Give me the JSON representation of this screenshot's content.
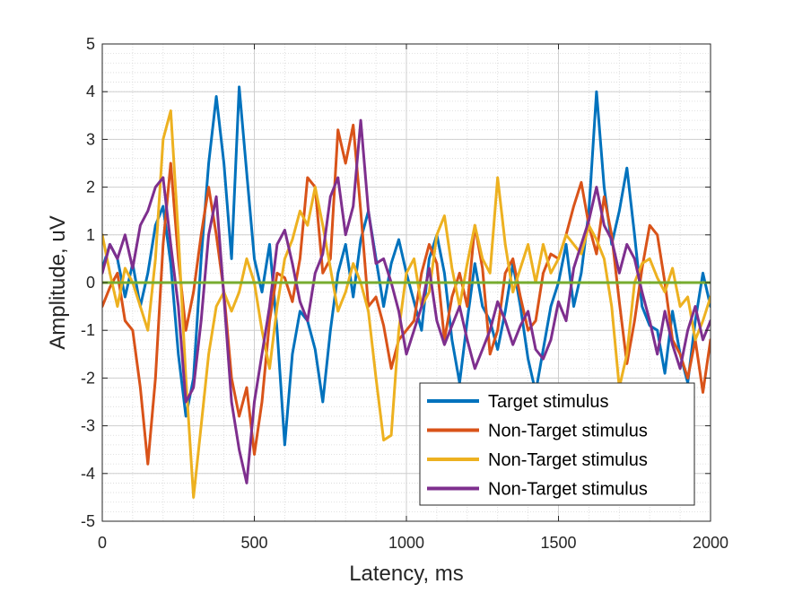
{
  "chart_data": {
    "type": "line",
    "xlabel": "Latency, ms",
    "ylabel": "Amplitude, uV",
    "xlim": [
      0,
      2000
    ],
    "ylim": [
      -5,
      5
    ],
    "xticks": [
      0,
      500,
      1000,
      1500,
      2000
    ],
    "xtick_labels": [
      "0",
      "500",
      "1000",
      "1500",
      "2000"
    ],
    "yticks": [
      -5,
      -4,
      -3,
      -2,
      -1,
      0,
      1,
      2,
      3,
      4,
      5
    ],
    "ytick_labels": [
      "-5",
      "-4",
      "-3",
      "-2",
      "-1",
      "0",
      "1",
      "2",
      "3",
      "4",
      "5"
    ],
    "grid": true,
    "minor_grid": true,
    "legend_position": "bottom-right",
    "series": [
      {
        "name": "Target stimulus",
        "color": "#0072BD",
        "x": [
          0,
          25,
          50,
          75,
          100,
          125,
          150,
          175,
          200,
          225,
          250,
          275,
          300,
          325,
          350,
          375,
          400,
          425,
          450,
          475,
          500,
          525,
          550,
          575,
          600,
          625,
          650,
          675,
          700,
          725,
          750,
          775,
          800,
          825,
          850,
          875,
          900,
          925,
          950,
          975,
          1000,
          1025,
          1050,
          1075,
          1100,
          1125,
          1150,
          1175,
          1200,
          1225,
          1250,
          1275,
          1300,
          1325,
          1350,
          1375,
          1400,
          1425,
          1450,
          1475,
          1500,
          1525,
          1550,
          1575,
          1600,
          1625,
          1650,
          1675,
          1700,
          1725,
          1750,
          1775,
          1800,
          1825,
          1850,
          1875,
          1900,
          1925,
          1950,
          1975,
          2000
        ],
        "values": [
          0.3,
          0.8,
          0.5,
          -0.3,
          0.4,
          -0.5,
          0.2,
          1.2,
          1.6,
          0.4,
          -1.5,
          -2.8,
          -2.0,
          0.5,
          2.5,
          3.9,
          2.5,
          0.5,
          4.1,
          2.3,
          0.5,
          -0.2,
          0.8,
          -1.0,
          -3.4,
          -1.5,
          -0.6,
          -0.8,
          -1.4,
          -2.5,
          -1.0,
          0.2,
          0.8,
          -0.3,
          0.9,
          1.5,
          0.5,
          -0.5,
          0.4,
          0.9,
          0.2,
          -0.4,
          -1.0,
          0.5,
          1.0,
          0.2,
          -1.2,
          -2.1,
          -0.8,
          0.4,
          -0.5,
          -0.8,
          -1.4,
          -0.6,
          0.4,
          -0.5,
          -1.6,
          -2.3,
          -1.4,
          -0.5,
          0.0,
          0.8,
          -0.5,
          0.2,
          1.5,
          4.0,
          2.0,
          0.8,
          1.5,
          2.4,
          1.0,
          -0.5,
          -0.9,
          -1.0,
          -1.9,
          -0.6,
          -1.5,
          -2.1,
          -0.8,
          0.2,
          -0.5
        ]
      },
      {
        "name": "Non-Target stimulus",
        "color": "#D95319",
        "x": [
          0,
          25,
          50,
          75,
          100,
          125,
          150,
          175,
          200,
          225,
          250,
          275,
          300,
          325,
          350,
          375,
          400,
          425,
          450,
          475,
          500,
          525,
          550,
          575,
          600,
          625,
          650,
          675,
          700,
          725,
          750,
          775,
          800,
          825,
          850,
          875,
          900,
          925,
          950,
          975,
          1000,
          1025,
          1050,
          1075,
          1100,
          1125,
          1150,
          1175,
          1200,
          1225,
          1250,
          1275,
          1300,
          1325,
          1350,
          1375,
          1400,
          1425,
          1450,
          1475,
          1500,
          1525,
          1550,
          1575,
          1600,
          1625,
          1650,
          1675,
          1700,
          1725,
          1750,
          1775,
          1800,
          1825,
          1850,
          1875,
          1900,
          1925,
          1950,
          1975,
          2000
        ],
        "values": [
          -0.5,
          -0.1,
          0.2,
          -0.8,
          -1.0,
          -2.2,
          -3.8,
          -2.0,
          0.8,
          2.5,
          0.5,
          -1.0,
          -0.2,
          1.0,
          2.0,
          1.0,
          -0.2,
          -2.0,
          -2.8,
          -2.2,
          -3.6,
          -2.5,
          -0.8,
          0.2,
          0.1,
          -0.4,
          0.5,
          2.2,
          2.0,
          0.2,
          0.5,
          3.2,
          2.5,
          3.3,
          1.5,
          -0.5,
          -0.3,
          -0.9,
          -1.8,
          -1.2,
          -1.0,
          -0.8,
          0.2,
          0.8,
          0.4,
          -1.2,
          -0.3,
          0.2,
          -0.5,
          1.2,
          0.3,
          -1.5,
          -1.0,
          0.2,
          0.5,
          -0.3,
          -1.0,
          -0.8,
          0.2,
          0.6,
          0.5,
          1.0,
          1.6,
          2.1,
          1.2,
          0.6,
          1.8,
          1.0,
          -0.4,
          -1.7,
          -0.8,
          0.3,
          1.2,
          1.0,
          0.0,
          -1.2,
          -1.5,
          -2.0,
          -1.2,
          -2.3,
          -1.2
        ]
      },
      {
        "name": "Non-Target stimulus",
        "color": "#EDB120",
        "x": [
          0,
          25,
          50,
          75,
          100,
          125,
          150,
          175,
          200,
          225,
          250,
          275,
          300,
          325,
          350,
          375,
          400,
          425,
          450,
          475,
          500,
          525,
          550,
          575,
          600,
          625,
          650,
          675,
          700,
          725,
          750,
          775,
          800,
          825,
          850,
          875,
          900,
          925,
          950,
          975,
          1000,
          1025,
          1050,
          1075,
          1100,
          1125,
          1150,
          1175,
          1200,
          1225,
          1250,
          1275,
          1300,
          1325,
          1350,
          1375,
          1400,
          1425,
          1450,
          1475,
          1500,
          1525,
          1550,
          1575,
          1600,
          1625,
          1650,
          1675,
          1700,
          1725,
          1750,
          1775,
          1800,
          1825,
          1850,
          1875,
          1900,
          1925,
          1950,
          1975,
          2000
        ],
        "values": [
          1.0,
          0.2,
          -0.5,
          0.3,
          0.0,
          -0.5,
          -1.0,
          0.5,
          3.0,
          3.6,
          1.0,
          -2.0,
          -4.5,
          -3.0,
          -1.5,
          -0.5,
          -0.2,
          -0.6,
          -0.2,
          0.5,
          0.0,
          -1.0,
          -1.8,
          -0.5,
          0.5,
          0.9,
          1.5,
          1.2,
          2.0,
          1.2,
          0.3,
          -0.6,
          -0.2,
          0.4,
          0.0,
          -0.6,
          -2.0,
          -3.3,
          -3.2,
          -1.0,
          0.2,
          0.5,
          -0.5,
          -0.2,
          1.0,
          1.4,
          0.3,
          -0.5,
          0.4,
          1.2,
          0.5,
          0.2,
          2.2,
          0.8,
          -0.2,
          0.3,
          0.8,
          0.0,
          0.8,
          0.2,
          0.5,
          1.0,
          0.8,
          0.6,
          1.2,
          0.9,
          0.5,
          -0.5,
          -2.2,
          -1.5,
          0.0,
          0.4,
          0.5,
          0.1,
          -0.2,
          0.3,
          -0.5,
          -0.3,
          -1.2,
          -0.8,
          -0.3
        ]
      },
      {
        "name": "Non-Target stimulus",
        "color": "#7E2F8E",
        "x": [
          0,
          25,
          50,
          75,
          100,
          125,
          150,
          175,
          200,
          225,
          250,
          275,
          300,
          325,
          350,
          375,
          400,
          425,
          450,
          475,
          500,
          525,
          550,
          575,
          600,
          625,
          650,
          675,
          700,
          725,
          750,
          775,
          800,
          825,
          850,
          875,
          900,
          925,
          950,
          975,
          1000,
          1025,
          1050,
          1075,
          1100,
          1125,
          1150,
          1175,
          1200,
          1225,
          1250,
          1275,
          1300,
          1325,
          1350,
          1375,
          1400,
          1425,
          1450,
          1475,
          1500,
          1525,
          1550,
          1575,
          1600,
          1625,
          1650,
          1675,
          1700,
          1725,
          1750,
          1775,
          1800,
          1825,
          1850,
          1875,
          1900,
          1925,
          1950,
          1975,
          2000
        ],
        "values": [
          0.2,
          0.8,
          0.5,
          1.0,
          0.3,
          1.2,
          1.5,
          2.0,
          2.2,
          0.8,
          -0.5,
          -2.5,
          -2.2,
          -0.8,
          1.0,
          1.8,
          -0.3,
          -2.5,
          -3.5,
          -4.2,
          -2.5,
          -1.5,
          -0.5,
          0.8,
          1.1,
          0.4,
          -0.4,
          -0.8,
          0.2,
          0.6,
          1.8,
          2.2,
          1.0,
          1.6,
          3.4,
          1.5,
          0.4,
          0.5,
          0.0,
          -0.6,
          -1.5,
          -1.0,
          -0.5,
          0.3,
          -0.8,
          -1.3,
          -0.9,
          -0.5,
          -1.2,
          -1.8,
          -1.4,
          -1.0,
          -0.4,
          -0.8,
          -1.3,
          -0.9,
          -0.6,
          -1.4,
          -1.6,
          -1.2,
          -0.4,
          -0.8,
          0.3,
          0.8,
          1.3,
          2.0,
          1.2,
          0.9,
          0.2,
          0.8,
          0.5,
          -0.2,
          -0.8,
          -1.5,
          -0.6,
          -1.3,
          -1.8,
          -1.0,
          -0.5,
          -1.2,
          -0.8
        ]
      },
      {
        "name": "",
        "color": "#77AC30",
        "x": [
          0,
          2000
        ],
        "values": [
          0,
          0
        ]
      }
    ]
  }
}
